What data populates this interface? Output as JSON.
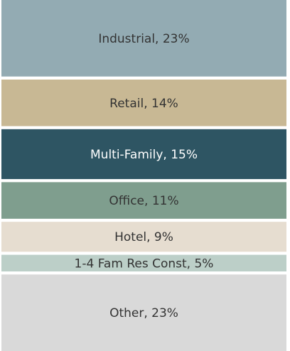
{
  "chart_data": {
    "type": "stacked_bar",
    "categories": [
      "Industrial, 23%",
      "Retail, 14%",
      "Multi-Family, 15%",
      "Office, 11%",
      "Hotel, 9%",
      "1-4 Fam Res Const, 5%",
      "Other, 23%"
    ],
    "values": [
      23,
      14,
      15,
      11,
      9,
      5,
      23
    ],
    "colors": [
      "#93abb3",
      "#c8b894",
      "#2e5563",
      "#7f9e8e",
      "#e6ddd0",
      "#bccfc8",
      "#d9d9d9"
    ]
  }
}
